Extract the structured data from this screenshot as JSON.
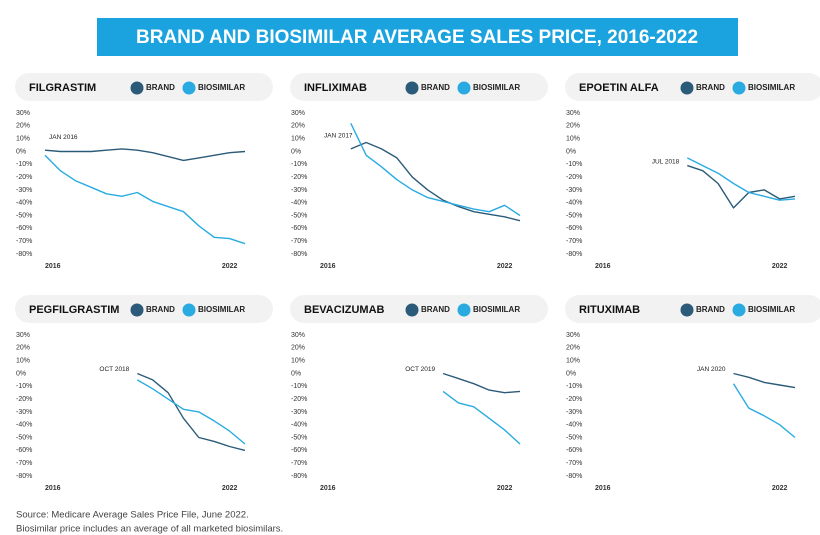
{
  "title": "BRAND AND BIOSIMILAR AVERAGE SALES PRICE, 2016-2022",
  "notes": [
    "Source: Medicare Average Sales Price File, June 2022.",
    "Biosimilar price includes an average of all marketed biosimilars."
  ],
  "chart_data": [
    {
      "type": "line",
      "title": "FILGRASTIM",
      "annotation": "JAN 2016",
      "x": [
        2016,
        2016.5,
        2017,
        2017.5,
        2018,
        2018.5,
        2019,
        2019.5,
        2020,
        2020.5,
        2021,
        2021.5,
        2022,
        2022.5
      ],
      "series": [
        {
          "name": "BRAND",
          "color": "#2b5b78",
          "values": [
            1,
            0,
            0,
            0,
            1,
            2,
            1,
            -1,
            -4,
            -7,
            -5,
            -3,
            -1,
            0
          ]
        },
        {
          "name": "BIOSIMILAR",
          "color": "#29abe2",
          "values": [
            -3,
            -15,
            -23,
            -28,
            -33,
            -35,
            -32,
            -39,
            -43,
            -47,
            -58,
            -67,
            -68,
            -72
          ]
        }
      ],
      "xlim": [
        2016,
        2022.5
      ],
      "xticks": [
        2016,
        2022
      ],
      "ylim": [
        -80,
        30
      ],
      "yticks": [
        {
          "value": 30,
          "label": "30%"
        },
        {
          "value": 20,
          "label": "20%"
        },
        {
          "value": 10,
          "label": "10%"
        },
        {
          "value": 0,
          "label": "0%"
        },
        {
          "value": -10,
          "label": "-10%"
        },
        {
          "value": -20,
          "label": "-20%"
        },
        {
          "value": -30,
          "label": "-30%"
        },
        {
          "value": -40,
          "label": "-40%"
        },
        {
          "value": -50,
          "label": "-50%"
        },
        {
          "value": -60,
          "label": "-60%"
        },
        {
          "value": -70,
          "label": "-70%"
        },
        {
          "value": -80,
          "label": "-80%"
        }
      ],
      "grid": false
    },
    {
      "type": "line",
      "title": "INFLIXIMAB",
      "annotation": "JAN 2017",
      "x": [
        2016,
        2016.5,
        2017,
        2017.5,
        2018,
        2018.5,
        2019,
        2019.5,
        2020,
        2020.5,
        2021,
        2021.5,
        2022,
        2022.5
      ],
      "series": [
        {
          "name": "BRAND",
          "color": "#2b5b78",
          "values": [
            null,
            null,
            2,
            7,
            2,
            -5,
            -20,
            -30,
            -38,
            -43,
            -47,
            -49,
            -51,
            -54
          ]
        },
        {
          "name": "BIOSIMILAR",
          "color": "#29abe2",
          "values": [
            null,
            null,
            22,
            -3,
            -12,
            -22,
            -30,
            -36,
            -39,
            -42,
            -45,
            -47,
            -42,
            -50
          ]
        }
      ],
      "xlim": [
        2016,
        2022.5
      ],
      "xticks": [
        2016,
        2022
      ],
      "ylim": [
        -80,
        30
      ],
      "yticks": [
        {
          "value": 30,
          "label": "30%"
        },
        {
          "value": 20,
          "label": "20%"
        },
        {
          "value": 10,
          "label": "10%"
        },
        {
          "value": 0,
          "label": "0%"
        },
        {
          "value": -10,
          "label": "-10%"
        },
        {
          "value": -20,
          "label": "-20%"
        },
        {
          "value": -30,
          "label": "-30%"
        },
        {
          "value": -40,
          "label": "-40%"
        },
        {
          "value": -50,
          "label": "-50%"
        },
        {
          "value": -60,
          "label": "-60%"
        },
        {
          "value": -70,
          "label": "-70%"
        },
        {
          "value": -80,
          "label": "-80%"
        }
      ],
      "grid": false
    },
    {
      "type": "line",
      "title": "EPOETIN ALFA",
      "annotation": "JUL 2018",
      "x": [
        2016,
        2016.5,
        2017,
        2017.5,
        2018,
        2018.5,
        2019,
        2019.5,
        2020,
        2020.5,
        2021,
        2021.5,
        2022,
        2022.5
      ],
      "series": [
        {
          "name": "BRAND",
          "color": "#2b5b78",
          "values": [
            null,
            null,
            null,
            null,
            null,
            null,
            -11,
            -15,
            -25,
            -44,
            -32,
            -30,
            -37,
            -35
          ]
        },
        {
          "name": "BIOSIMILAR",
          "color": "#29abe2",
          "values": [
            null,
            null,
            null,
            null,
            null,
            null,
            -5,
            -11,
            -17,
            -25,
            -32,
            -35,
            -38,
            -37
          ]
        }
      ],
      "xlim": [
        2016,
        2022.5
      ],
      "xticks": [
        2016,
        2022
      ],
      "ylim": [
        -80,
        30
      ],
      "yticks": [
        {
          "value": 30,
          "label": "30%"
        },
        {
          "value": 20,
          "label": "20%"
        },
        {
          "value": 10,
          "label": "10%"
        },
        {
          "value": 0,
          "label": "0%"
        },
        {
          "value": -10,
          "label": "-10%"
        },
        {
          "value": -20,
          "label": "-20%"
        },
        {
          "value": -30,
          "label": "-30%"
        },
        {
          "value": -40,
          "label": "-40%"
        },
        {
          "value": -50,
          "label": "-50%"
        },
        {
          "value": -60,
          "label": "-60%"
        },
        {
          "value": -70,
          "label": "-70%"
        },
        {
          "value": -80,
          "label": "-80%"
        }
      ],
      "grid": false
    },
    {
      "type": "line",
      "title": "PEGFILGRASTIM",
      "annotation": "OCT 2018",
      "x": [
        2016,
        2016.5,
        2017,
        2017.5,
        2018,
        2018.5,
        2019,
        2019.5,
        2020,
        2020.5,
        2021,
        2021.5,
        2022,
        2022.5
      ],
      "series": [
        {
          "name": "BRAND",
          "color": "#2b5b78",
          "values": [
            null,
            null,
            null,
            null,
            null,
            null,
            0,
            -5,
            -15,
            -35,
            -50,
            -53,
            -57,
            -60
          ]
        },
        {
          "name": "BIOSIMILAR",
          "color": "#29abe2",
          "values": [
            null,
            null,
            null,
            null,
            null,
            null,
            -5,
            -12,
            -20,
            -28,
            -30,
            -37,
            -45,
            -55
          ]
        }
      ],
      "xlim": [
        2016,
        2022.5
      ],
      "xticks": [
        2016,
        2022
      ],
      "ylim": [
        -80,
        30
      ],
      "yticks": [
        {
          "value": 30,
          "label": "30%"
        },
        {
          "value": 20,
          "label": "20%"
        },
        {
          "value": 10,
          "label": "10%"
        },
        {
          "value": 0,
          "label": "0%"
        },
        {
          "value": -10,
          "label": "-10%"
        },
        {
          "value": -20,
          "label": "-20%"
        },
        {
          "value": -30,
          "label": "-30%"
        },
        {
          "value": -40,
          "label": "-40%"
        },
        {
          "value": -50,
          "label": "-50%"
        },
        {
          "value": -60,
          "label": "-60%"
        },
        {
          "value": -70,
          "label": "-70%"
        },
        {
          "value": -80,
          "label": "-80%"
        }
      ],
      "grid": false
    },
    {
      "type": "line",
      "title": "BEVACIZUMAB",
      "annotation": "OCT 2019",
      "x": [
        2016,
        2016.5,
        2017,
        2017.5,
        2018,
        2018.5,
        2019,
        2019.5,
        2020,
        2020.5,
        2021,
        2021.5,
        2022,
        2022.5
      ],
      "series": [
        {
          "name": "BRAND",
          "color": "#2b5b78",
          "values": [
            null,
            null,
            null,
            null,
            null,
            null,
            null,
            null,
            0,
            -4,
            -8,
            -13,
            -15,
            -14
          ]
        },
        {
          "name": "BIOSIMILAR",
          "color": "#29abe2",
          "values": [
            null,
            null,
            null,
            null,
            null,
            null,
            null,
            null,
            -14,
            -23,
            -26,
            -35,
            -44,
            -55
          ]
        }
      ],
      "xlim": [
        2016,
        2022.5
      ],
      "xticks": [
        2016,
        2022
      ],
      "ylim": [
        -80,
        30
      ],
      "yticks": [
        {
          "value": 30,
          "label": "30%"
        },
        {
          "value": 20,
          "label": "20%"
        },
        {
          "value": 10,
          "label": "10%"
        },
        {
          "value": 0,
          "label": "0%"
        },
        {
          "value": -10,
          "label": "-10%"
        },
        {
          "value": -20,
          "label": "-20%"
        },
        {
          "value": -30,
          "label": "-30%"
        },
        {
          "value": -40,
          "label": "-40%"
        },
        {
          "value": -50,
          "label": "-50%"
        },
        {
          "value": -60,
          "label": "-60%"
        },
        {
          "value": -70,
          "label": "-70%"
        },
        {
          "value": -80,
          "label": "-80%"
        }
      ],
      "grid": false
    },
    {
      "type": "line",
      "title": "RITUXIMAB",
      "annotation": "JAN 2020",
      "x": [
        2016,
        2016.5,
        2017,
        2017.5,
        2018,
        2018.5,
        2019,
        2019.5,
        2020,
        2020.5,
        2021,
        2021.5,
        2022,
        2022.5
      ],
      "series": [
        {
          "name": "BRAND",
          "color": "#2b5b78",
          "values": [
            null,
            null,
            null,
            null,
            null,
            null,
            null,
            null,
            null,
            0,
            -3,
            -7,
            -9,
            -11
          ]
        },
        {
          "name": "BIOSIMILAR",
          "color": "#29abe2",
          "values": [
            null,
            null,
            null,
            null,
            null,
            null,
            null,
            null,
            null,
            -8,
            -27,
            -33,
            -40,
            -50
          ]
        }
      ],
      "xlim": [
        2016,
        2022.5
      ],
      "xticks": [
        2016,
        2022
      ],
      "ylim": [
        -80,
        30
      ],
      "yticks": [
        {
          "value": 30,
          "label": "30%"
        },
        {
          "value": 20,
          "label": "20%"
        },
        {
          "value": 10,
          "label": "10%"
        },
        {
          "value": 0,
          "label": "0%"
        },
        {
          "value": -10,
          "label": "-10%"
        },
        {
          "value": -20,
          "label": "-20%"
        },
        {
          "value": -30,
          "label": "-30%"
        },
        {
          "value": -40,
          "label": "-40%"
        },
        {
          "value": -50,
          "label": "-50%"
        },
        {
          "value": -60,
          "label": "-60%"
        },
        {
          "value": -70,
          "label": "-70%"
        },
        {
          "value": -80,
          "label": "-80%"
        }
      ],
      "grid": false
    }
  ]
}
